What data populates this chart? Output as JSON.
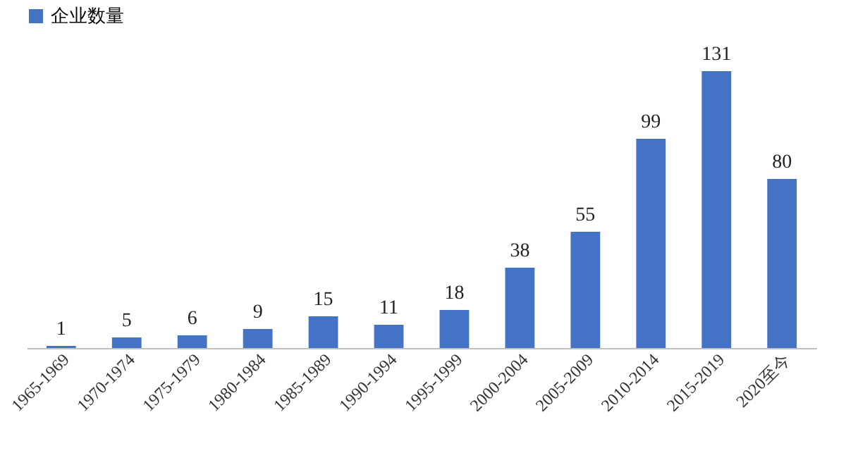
{
  "chart_data": {
    "type": "bar",
    "categories": [
      "1965-1969",
      "1970-1974",
      "1975-1979",
      "1980-1984",
      "1985-1989",
      "1990-1994",
      "1995-1999",
      "2000-2004",
      "2005-2009",
      "2010-2014",
      "2015-2019",
      "2020至今"
    ],
    "series": [
      {
        "name": "企业数量",
        "color": "#4472c4",
        "values": [
          1,
          5,
          6,
          9,
          15,
          11,
          18,
          38,
          55,
          99,
          131,
          80
        ]
      }
    ],
    "data_labels": true,
    "legend": "top",
    "grid": false,
    "tick_labels": "x"
  }
}
